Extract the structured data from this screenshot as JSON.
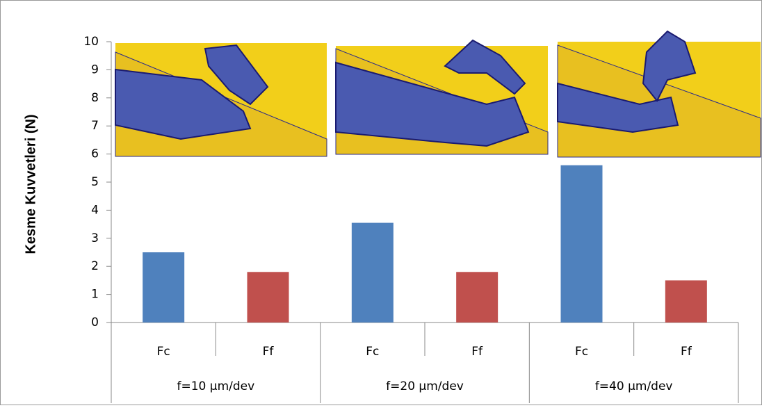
{
  "chart_data": {
    "type": "bar",
    "y_label": "Kesme Kuvvetleri (N)",
    "categories": [
      "Fc",
      "Ff",
      "Fc",
      "Ff",
      "Fc",
      "Ff"
    ],
    "groups": [
      "f=10 µm/dev",
      "f=20 µm/dev",
      "f=40 µm/dev"
    ],
    "values": [
      2.5,
      1.8,
      3.55,
      1.8,
      5.6,
      1.5
    ],
    "colors": [
      "#4f81bd",
      "#c0504d",
      "#4f81bd",
      "#c0504d",
      "#4f81bd",
      "#c0504d"
    ],
    "ylim": [
      0,
      10
    ],
    "yticks": [
      0,
      1,
      2,
      3,
      4,
      5,
      6,
      7,
      8,
      9,
      10
    ],
    "grid": false
  }
}
